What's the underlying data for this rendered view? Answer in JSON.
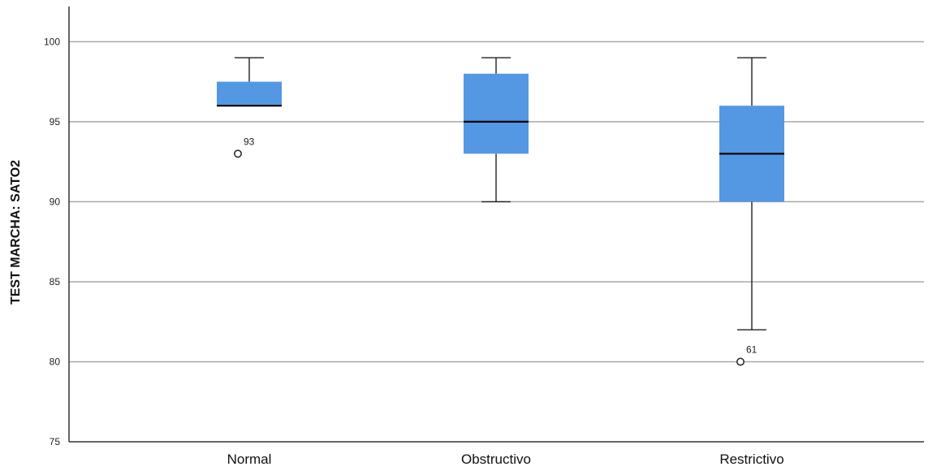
{
  "chart_data": {
    "type": "boxplot",
    "ylabel": "TEST MARCHA: SATO2",
    "ylim": [
      75,
      102.2
    ],
    "yticks": [
      75,
      80,
      85,
      90,
      95,
      100
    ],
    "grid": true,
    "colors": {
      "box_fill": "#5497e3",
      "gridline": "#a8a8a8",
      "axis": "#333333",
      "median": "#000000"
    },
    "categories": [
      "Normal",
      "Obstructivo",
      "Restrictivo"
    ],
    "boxes": [
      {
        "category": "Normal",
        "whisker_low": 96,
        "q1": 96,
        "median": 96,
        "q3": 97.5,
        "whisker_high": 99,
        "outliers": [
          {
            "value": 93,
            "label": "93"
          }
        ]
      },
      {
        "category": "Obstructivo",
        "whisker_low": 90,
        "q1": 93,
        "median": 95,
        "q3": 98,
        "whisker_high": 99,
        "outliers": []
      },
      {
        "category": "Restrictivo",
        "whisker_low": 82,
        "q1": 90,
        "median": 93,
        "q3": 96,
        "whisker_high": 99,
        "outliers": [
          {
            "value": 80,
            "label": "61"
          }
        ]
      }
    ]
  }
}
